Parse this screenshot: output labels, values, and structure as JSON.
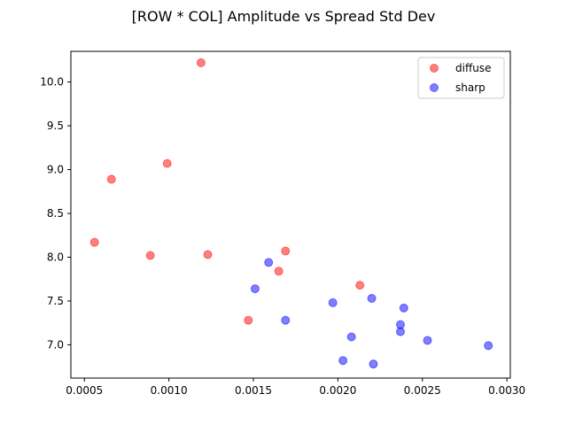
{
  "chart_data": {
    "type": "scatter",
    "title": "[ROW * COL] Amplitude vs Spread Std Dev",
    "xlabel": "",
    "ylabel": "",
    "xlim": [
      0.00042,
      0.00302
    ],
    "ylim": [
      6.62,
      10.35
    ],
    "xticks": [
      "0.0005",
      "0.0010",
      "0.0015",
      "0.0020",
      "0.0025",
      "0.0030"
    ],
    "xtick_values": [
      0.0005,
      0.001,
      0.0015,
      0.002,
      0.0025,
      0.003
    ],
    "yticks": [
      "7.0",
      "7.5",
      "8.0",
      "8.5",
      "9.0",
      "9.5",
      "10.0"
    ],
    "ytick_values": [
      7.0,
      7.5,
      8.0,
      8.5,
      9.0,
      9.5,
      10.0
    ],
    "grid": false,
    "legend_position": "top-right",
    "series": [
      {
        "name": "diffuse",
        "color": "#ff0000",
        "points": [
          {
            "x": 0.00056,
            "y": 8.17
          },
          {
            "x": 0.00066,
            "y": 8.89
          },
          {
            "x": 0.00089,
            "y": 8.02
          },
          {
            "x": 0.00099,
            "y": 9.07
          },
          {
            "x": 0.00119,
            "y": 10.22
          },
          {
            "x": 0.00123,
            "y": 8.03
          },
          {
            "x": 0.00147,
            "y": 7.28
          },
          {
            "x": 0.00165,
            "y": 7.84
          },
          {
            "x": 0.00169,
            "y": 8.07
          },
          {
            "x": 0.00213,
            "y": 7.68
          }
        ]
      },
      {
        "name": "sharp",
        "color": "#0000ff",
        "points": [
          {
            "x": 0.00151,
            "y": 7.64
          },
          {
            "x": 0.00159,
            "y": 7.94
          },
          {
            "x": 0.00169,
            "y": 7.28
          },
          {
            "x": 0.00197,
            "y": 7.48
          },
          {
            "x": 0.00203,
            "y": 6.82
          },
          {
            "x": 0.00208,
            "y": 7.09
          },
          {
            "x": 0.0022,
            "y": 7.53
          },
          {
            "x": 0.00221,
            "y": 6.78
          },
          {
            "x": 0.00237,
            "y": 7.23
          },
          {
            "x": 0.00237,
            "y": 7.15
          },
          {
            "x": 0.00239,
            "y": 7.42
          },
          {
            "x": 0.00253,
            "y": 7.05
          },
          {
            "x": 0.00289,
            "y": 6.99
          }
        ]
      }
    ]
  }
}
